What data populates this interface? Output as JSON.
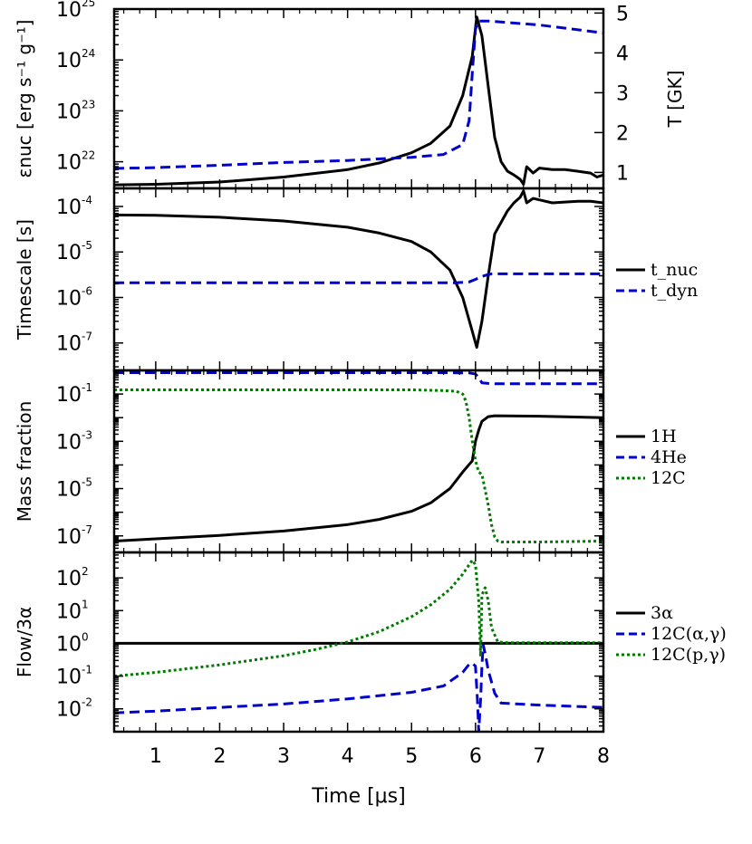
{
  "chart_data": [
    {
      "type": "line",
      "panel": "energy",
      "ylabel": "εnuc [erg s⁻¹ g⁻¹]",
      "yscale": "log",
      "ylim": [
        3e+21,
        1e+25
      ],
      "yticks": [
        {
          "value": 1e+22,
          "base": "10",
          "exp": "22"
        },
        {
          "value": 1e+23,
          "base": "10",
          "exp": "23"
        },
        {
          "value": 1e+24,
          "base": "10",
          "exp": "24"
        },
        {
          "value": 1e+25,
          "base": "10",
          "exp": "25"
        }
      ],
      "y2label": "T [GK]",
      "y2lim": [
        0.6,
        5.1
      ],
      "y2ticks": [
        "1",
        "2",
        "3",
        "4",
        "5"
      ],
      "series": [
        {
          "name": "εnuc",
          "axis": "left",
          "color": "#000000",
          "dash": "solid",
          "x": [
            0.35,
            1,
            2,
            3,
            4,
            4.5,
            5,
            5.3,
            5.6,
            5.8,
            5.95,
            6.02,
            6.1,
            6.2,
            6.3,
            6.4,
            6.5,
            6.6,
            6.7,
            6.75,
            6.8,
            6.9,
            7,
            7.2,
            7.4,
            7.6,
            7.8,
            7.9,
            8
          ],
          "y": [
            3.5e+21,
            3.6e+21,
            4e+21,
            5e+21,
            7e+21,
            9.5e+21,
            1.5e+22,
            2.3e+22,
            5e+22,
            2e+23,
            1.2e+24,
            7e+24,
            3e+24,
            3e+23,
            3e+22,
            1e+22,
            6.5e+21,
            5.5e+21,
            4.5e+21,
            3.6e+21,
            8e+21,
            6e+21,
            7.5e+21,
            7e+21,
            7e+21,
            6.5e+21,
            6e+21,
            5e+21,
            5.5e+21
          ]
        },
        {
          "name": "T",
          "axis": "right",
          "color": "#0000cc",
          "dash": "dash",
          "x": [
            0.35,
            1,
            2,
            3,
            4,
            5,
            5.5,
            5.8,
            5.9,
            5.95,
            6.0,
            6.05,
            6.2,
            7,
            8
          ],
          "y": [
            1.1,
            1.12,
            1.18,
            1.25,
            1.3,
            1.38,
            1.45,
            1.7,
            2.3,
            3.5,
            4.6,
            4.8,
            4.8,
            4.7,
            4.5
          ]
        }
      ]
    },
    {
      "type": "line",
      "panel": "timescale",
      "ylabel": "Timescale [s]",
      "yscale": "log",
      "ylim": [
        2.5e-08,
        0.00025
      ],
      "yticks": [
        {
          "value": 1e-07,
          "base": "10",
          "exp": "-7"
        },
        {
          "value": 1e-06,
          "base": "10",
          "exp": "-6"
        },
        {
          "value": 1e-05,
          "base": "10",
          "exp": "-5"
        },
        {
          "value": 0.0001,
          "base": "10",
          "exp": "-4"
        }
      ],
      "legend": [
        "t_nuc",
        "t_dyn"
      ],
      "series": [
        {
          "name": "t_nuc",
          "color": "#000000",
          "dash": "solid",
          "x": [
            0.35,
            1,
            2,
            3,
            4,
            4.5,
            5,
            5.3,
            5.6,
            5.8,
            5.95,
            6.02,
            6.1,
            6.2,
            6.3,
            6.5,
            6.6,
            6.7,
            6.75,
            6.8,
            6.9,
            7,
            7.2,
            7.4,
            7.6,
            7.8,
            8
          ],
          "y": [
            6.5e-05,
            6.4e-05,
            5.8e-05,
            4.8e-05,
            3.5e-05,
            2.6e-05,
            1.7e-05,
            1e-05,
            4e-06,
            1e-06,
            1.8e-07,
            8e-08,
            3e-07,
            3e-06,
            2.5e-05,
            8e-05,
            0.00012,
            0.00016,
            0.00022,
            0.00012,
            0.00015,
            0.00014,
            0.00012,
            0.000125,
            0.00013,
            0.00013,
            0.00012
          ]
        },
        {
          "name": "t_dyn",
          "color": "#0000cc",
          "dash": "dash",
          "x": [
            0.35,
            2,
            4,
            5,
            5.7,
            5.9,
            6.0,
            6.1,
            6.2,
            6.25,
            7,
            8
          ],
          "y": [
            2.1e-06,
            2.1e-06,
            2.1e-06,
            2.1e-06,
            2.1e-06,
            2.2e-06,
            2.5e-06,
            2.9e-06,
            3.2e-06,
            3.3e-06,
            3.3e-06,
            3.3e-06
          ]
        }
      ]
    },
    {
      "type": "line",
      "panel": "mass-fraction",
      "ylabel": "Mass fraction",
      "yscale": "log",
      "ylim": [
        2e-08,
        1.0
      ],
      "yticks": [
        {
          "value": 1e-07,
          "base": "10",
          "exp": "-7"
        },
        {
          "value": 1e-05,
          "base": "10",
          "exp": "-5"
        },
        {
          "value": 0.001,
          "base": "10",
          "exp": "-3"
        },
        {
          "value": 0.1,
          "base": "10",
          "exp": "-1"
        }
      ],
      "legend": [
        "1H",
        "4He",
        "12C"
      ],
      "series": [
        {
          "name": "1H",
          "color": "#000000",
          "dash": "solid",
          "x": [
            0.35,
            1,
            2,
            3,
            4,
            4.5,
            5,
            5.3,
            5.6,
            5.8,
            5.95,
            6.0,
            6.05,
            6.1,
            6.2,
            6.3,
            7,
            8
          ],
          "y": [
            6e-08,
            7.5e-08,
            1.05e-07,
            1.6e-07,
            3e-07,
            5e-07,
            1.1e-06,
            2.5e-06,
            1e-05,
            5e-05,
            0.00015,
            0.001,
            0.003,
            0.007,
            0.011,
            0.012,
            0.0115,
            0.01
          ]
        },
        {
          "name": "4He",
          "color": "#0000cc",
          "dash": "dash",
          "x": [
            0.35,
            1,
            2,
            3,
            4,
            5,
            5.5,
            5.9,
            6.0,
            6.05,
            6.1,
            6.2,
            6.3,
            7,
            8
          ],
          "y": [
            0.8,
            0.8,
            0.8,
            0.8,
            0.8,
            0.8,
            0.8,
            0.78,
            0.7,
            0.5,
            0.3,
            0.28,
            0.27,
            0.27,
            0.27
          ]
        },
        {
          "name": "12C",
          "color": "#007a00",
          "dash": "dot",
          "x": [
            0.35,
            1,
            2,
            3,
            4,
            5,
            5.5,
            5.7,
            5.8,
            5.85,
            5.9,
            5.95,
            6.0,
            6.05,
            6.1,
            6.2,
            6.25,
            6.3,
            6.35,
            6.4,
            6.5,
            7,
            8
          ],
          "y": [
            0.15,
            0.15,
            0.15,
            0.15,
            0.15,
            0.15,
            0.14,
            0.13,
            0.1,
            0.05,
            0.01,
            0.001,
            0.00015,
            5e-05,
            4e-05,
            2e-06,
            3e-07,
            9e-08,
            6e-08,
            5.5e-08,
            5.5e-08,
            5.5e-08,
            6e-08
          ]
        }
      ]
    },
    {
      "type": "line",
      "panel": "flow",
      "ylabel": "Flow/3α",
      "yscale": "log",
      "ylim": [
        0.002,
        600.0
      ],
      "yticks": [
        {
          "value": 0.01,
          "base": "10",
          "exp": "-2"
        },
        {
          "value": 0.1,
          "base": "10",
          "exp": "-1"
        },
        {
          "value": 1,
          "base": "10",
          "exp": "0"
        },
        {
          "value": 10,
          "base": "10",
          "exp": "1"
        },
        {
          "value": 100,
          "base": "10",
          "exp": "2"
        }
      ],
      "legend": [
        "3α",
        "12C(α,γ)",
        "12C(p,γ)"
      ],
      "xlabel": "Time [μs]",
      "xlim": [
        0.35,
        8
      ],
      "xticks": [
        "1",
        "2",
        "3",
        "4",
        "5",
        "6",
        "7",
        "8"
      ],
      "series": [
        {
          "name": "3α",
          "color": "#000000",
          "dash": "solid",
          "x": [
            0.35,
            8
          ],
          "y": [
            1,
            1
          ]
        },
        {
          "name": "12C(α,γ)",
          "color": "#0000cc",
          "dash": "dash",
          "x": [
            0.35,
            1,
            2,
            3,
            4,
            5,
            5.5,
            5.8,
            5.9,
            5.95,
            6.0,
            6.03,
            6.05,
            6.08,
            6.1,
            6.12,
            6.15,
            6.2,
            6.3,
            6.4,
            7,
            7.5,
            8
          ],
          "y": [
            0.0075,
            0.0085,
            0.011,
            0.014,
            0.02,
            0.032,
            0.05,
            0.13,
            0.23,
            0.25,
            0.2,
            0.02,
            0.002,
            0.02,
            0.2,
            0.9,
            0.5,
            0.15,
            0.03,
            0.015,
            0.013,
            0.012,
            0.011
          ]
        },
        {
          "name": "12C(p,γ)",
          "color": "#007a00",
          "dash": "dot",
          "x": [
            0.35,
            1,
            2,
            3,
            3.5,
            4,
            4.5,
            5,
            5.3,
            5.6,
            5.8,
            5.9,
            5.95,
            6.0,
            6.05,
            6.08,
            6.1,
            6.15,
            6.2,
            6.25,
            6.35,
            6.5,
            7,
            8
          ],
          "y": [
            0.1,
            0.13,
            0.22,
            0.42,
            0.65,
            1.1,
            2.3,
            6.5,
            15,
            45,
            130,
            250,
            350,
            250,
            20,
            0.4,
            30,
            50,
            20,
            3,
            1.1,
            1.05,
            1.05,
            1.05
          ]
        }
      ]
    }
  ],
  "colors": {
    "black": "#000000",
    "blue": "#0000cc",
    "green": "#007a00"
  }
}
